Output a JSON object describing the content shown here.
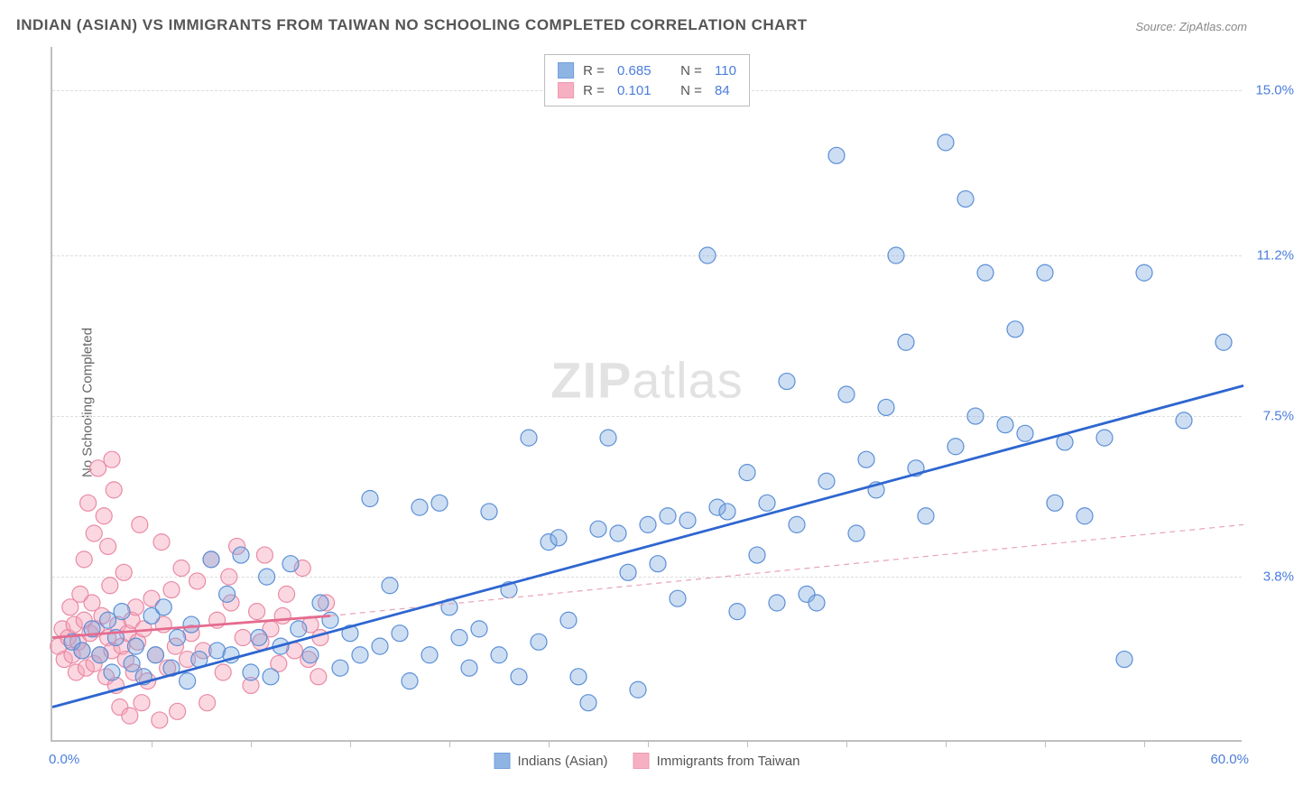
{
  "title": "INDIAN (ASIAN) VS IMMIGRANTS FROM TAIWAN NO SCHOOLING COMPLETED CORRELATION CHART",
  "source": "Source: ZipAtlas.com",
  "ylabel": "No Schooling Completed",
  "watermark_left": "ZIP",
  "watermark_right": "atlas",
  "chart": {
    "type": "scatter",
    "xlim": [
      0,
      60
    ],
    "ylim": [
      0,
      16
    ],
    "xaxis_min_label": "0.0%",
    "xaxis_max_label": "60.0%",
    "yticks": [
      3.8,
      7.5,
      11.2,
      15.0
    ],
    "ytick_labels": [
      "3.8%",
      "7.5%",
      "11.2%",
      "15.0%"
    ],
    "xtick_positions": [
      5,
      10,
      15,
      20,
      25,
      30,
      35,
      40,
      45,
      50,
      55
    ],
    "background_color": "#ffffff",
    "grid_color": "#dddddd",
    "axis_color": "#bfbfbf",
    "marker_radius": 9,
    "marker_stroke_width": 1.2,
    "line_width_solid": 2.8,
    "line_width_dash": 1.2,
    "dash_pattern": "6,5"
  },
  "series": {
    "indians": {
      "label": "Indians (Asian)",
      "fill": "#7ba7e0",
      "fill_opacity": 0.38,
      "stroke": "#5b8fd6",
      "line_color": "#2e66d0",
      "r_value": "0.685",
      "n_value": "110",
      "trend_solid": {
        "x1": 0,
        "y1": 0.8,
        "x2": 60,
        "y2": 8.2
      },
      "points": [
        [
          1,
          2.3
        ],
        [
          1.5,
          2.1
        ],
        [
          2,
          2.6
        ],
        [
          2.4,
          2.0
        ],
        [
          2.8,
          2.8
        ],
        [
          3,
          1.6
        ],
        [
          3.2,
          2.4
        ],
        [
          3.5,
          3.0
        ],
        [
          4,
          1.8
        ],
        [
          4.2,
          2.2
        ],
        [
          4.6,
          1.5
        ],
        [
          5,
          2.9
        ],
        [
          5.2,
          2.0
        ],
        [
          5.6,
          3.1
        ],
        [
          6,
          1.7
        ],
        [
          6.3,
          2.4
        ],
        [
          6.8,
          1.4
        ],
        [
          7,
          2.7
        ],
        [
          7.4,
          1.9
        ],
        [
          8,
          4.2
        ],
        [
          8.3,
          2.1
        ],
        [
          8.8,
          3.4
        ],
        [
          9,
          2.0
        ],
        [
          9.5,
          4.3
        ],
        [
          10,
          1.6
        ],
        [
          10.4,
          2.4
        ],
        [
          10.8,
          3.8
        ],
        [
          11,
          1.5
        ],
        [
          11.5,
          2.2
        ],
        [
          12,
          4.1
        ],
        [
          12.4,
          2.6
        ],
        [
          13,
          2.0
        ],
        [
          13.5,
          3.2
        ],
        [
          14,
          2.8
        ],
        [
          14.5,
          1.7
        ],
        [
          15,
          2.5
        ],
        [
          15.5,
          2.0
        ],
        [
          16,
          5.6
        ],
        [
          16.5,
          2.2
        ],
        [
          17,
          3.6
        ],
        [
          17.5,
          2.5
        ],
        [
          18,
          1.4
        ],
        [
          18.5,
          5.4
        ],
        [
          19,
          2.0
        ],
        [
          19.5,
          5.5
        ],
        [
          20,
          3.1
        ],
        [
          20.5,
          2.4
        ],
        [
          21,
          1.7
        ],
        [
          21.5,
          2.6
        ],
        [
          22,
          5.3
        ],
        [
          22.5,
          2.0
        ],
        [
          23,
          3.5
        ],
        [
          23.5,
          1.5
        ],
        [
          24,
          7.0
        ],
        [
          24.5,
          2.3
        ],
        [
          25,
          4.6
        ],
        [
          25.5,
          4.7
        ],
        [
          26,
          2.8
        ],
        [
          26.5,
          1.5
        ],
        [
          27,
          0.9
        ],
        [
          27.5,
          4.9
        ],
        [
          28,
          7.0
        ],
        [
          28.5,
          4.8
        ],
        [
          29,
          3.9
        ],
        [
          29.5,
          1.2
        ],
        [
          30,
          5.0
        ],
        [
          30.5,
          4.1
        ],
        [
          31,
          5.2
        ],
        [
          31.5,
          3.3
        ],
        [
          32,
          5.1
        ],
        [
          33,
          11.2
        ],
        [
          33.5,
          5.4
        ],
        [
          34,
          5.3
        ],
        [
          34.5,
          3.0
        ],
        [
          35,
          6.2
        ],
        [
          35.5,
          4.3
        ],
        [
          36,
          5.5
        ],
        [
          36.5,
          3.2
        ],
        [
          37,
          8.3
        ],
        [
          37.5,
          5.0
        ],
        [
          38,
          3.4
        ],
        [
          38.5,
          3.2
        ],
        [
          39,
          6.0
        ],
        [
          39.5,
          13.5
        ],
        [
          40,
          8.0
        ],
        [
          40.5,
          4.8
        ],
        [
          41,
          6.5
        ],
        [
          41.5,
          5.8
        ],
        [
          42,
          7.7
        ],
        [
          42.5,
          11.2
        ],
        [
          43,
          9.2
        ],
        [
          43.5,
          6.3
        ],
        [
          44,
          5.2
        ],
        [
          45,
          13.8
        ],
        [
          45.5,
          6.8
        ],
        [
          46,
          12.5
        ],
        [
          46.5,
          7.5
        ],
        [
          47,
          10.8
        ],
        [
          48,
          7.3
        ],
        [
          48.5,
          9.5
        ],
        [
          49,
          7.1
        ],
        [
          50,
          10.8
        ],
        [
          50.5,
          5.5
        ],
        [
          51,
          6.9
        ],
        [
          52,
          5.2
        ],
        [
          53,
          7.0
        ],
        [
          54,
          1.9
        ],
        [
          55,
          10.8
        ],
        [
          57,
          7.4
        ],
        [
          59,
          9.2
        ]
      ]
    },
    "taiwan": {
      "label": "Immigrants from Taiwan",
      "fill": "#f5a3b8",
      "fill_opacity": 0.42,
      "stroke": "#e98aa5",
      "line_color": "#e56b8f",
      "dash_color": "#e8a4b5",
      "r_value": "0.101",
      "n_value": "84",
      "trend_solid": {
        "x1": 0,
        "y1": 2.4,
        "x2": 14,
        "y2": 2.9
      },
      "trend_dash": {
        "x1": 14,
        "y1": 2.9,
        "x2": 60,
        "y2": 5.0
      },
      "points": [
        [
          0.3,
          2.2
        ],
        [
          0.5,
          2.6
        ],
        [
          0.6,
          1.9
        ],
        [
          0.8,
          2.4
        ],
        [
          0.9,
          3.1
        ],
        [
          1.0,
          2.0
        ],
        [
          1.1,
          2.7
        ],
        [
          1.2,
          1.6
        ],
        [
          1.3,
          2.3
        ],
        [
          1.4,
          3.4
        ],
        [
          1.5,
          2.1
        ],
        [
          1.6,
          2.8
        ],
        [
          1.7,
          1.7
        ],
        [
          1.8,
          5.5
        ],
        [
          1.9,
          2.5
        ],
        [
          2.0,
          3.2
        ],
        [
          2.1,
          1.8
        ],
        [
          2.2,
          2.6
        ],
        [
          2.3,
          6.3
        ],
        [
          2.4,
          2.0
        ],
        [
          2.5,
          2.9
        ],
        [
          2.6,
          5.2
        ],
        [
          2.7,
          1.5
        ],
        [
          2.8,
          2.4
        ],
        [
          2.9,
          3.6
        ],
        [
          3.0,
          2.1
        ],
        [
          3.1,
          5.8
        ],
        [
          3.2,
          1.3
        ],
        [
          3.3,
          2.7
        ],
        [
          3.4,
          0.8
        ],
        [
          3.5,
          2.2
        ],
        [
          3.6,
          3.9
        ],
        [
          3.7,
          1.9
        ],
        [
          3.8,
          2.5
        ],
        [
          3.9,
          0.6
        ],
        [
          4.0,
          2.8
        ],
        [
          4.1,
          1.6
        ],
        [
          4.2,
          3.1
        ],
        [
          4.3,
          2.3
        ],
        [
          4.5,
          0.9
        ],
        [
          4.6,
          2.6
        ],
        [
          4.8,
          1.4
        ],
        [
          5.0,
          3.3
        ],
        [
          5.2,
          2.0
        ],
        [
          5.4,
          0.5
        ],
        [
          5.6,
          2.7
        ],
        [
          5.8,
          1.7
        ],
        [
          6.0,
          3.5
        ],
        [
          6.2,
          2.2
        ],
        [
          6.5,
          4.0
        ],
        [
          6.8,
          1.9
        ],
        [
          7.0,
          2.5
        ],
        [
          7.3,
          3.7
        ],
        [
          7.6,
          2.1
        ],
        [
          8.0,
          4.2
        ],
        [
          8.3,
          2.8
        ],
        [
          8.6,
          1.6
        ],
        [
          9.0,
          3.2
        ],
        [
          9.3,
          4.5
        ],
        [
          9.6,
          2.4
        ],
        [
          10.0,
          1.3
        ],
        [
          10.3,
          3.0
        ],
        [
          10.7,
          4.3
        ],
        [
          11.0,
          2.6
        ],
        [
          11.4,
          1.8
        ],
        [
          11.8,
          3.4
        ],
        [
          12.2,
          2.1
        ],
        [
          12.6,
          4.0
        ],
        [
          13.0,
          2.7
        ],
        [
          13.4,
          1.5
        ],
        [
          13.8,
          3.2
        ],
        [
          3.0,
          6.5
        ],
        [
          2.1,
          4.8
        ],
        [
          4.4,
          5.0
        ],
        [
          1.6,
          4.2
        ],
        [
          2.8,
          4.5
        ],
        [
          5.5,
          4.6
        ],
        [
          6.3,
          0.7
        ],
        [
          7.8,
          0.9
        ],
        [
          8.9,
          3.8
        ],
        [
          10.5,
          2.3
        ],
        [
          11.6,
          2.9
        ],
        [
          12.9,
          1.9
        ],
        [
          13.5,
          2.4
        ]
      ]
    }
  },
  "legend_labels": {
    "r_prefix": "R = ",
    "n_prefix": "N = "
  }
}
